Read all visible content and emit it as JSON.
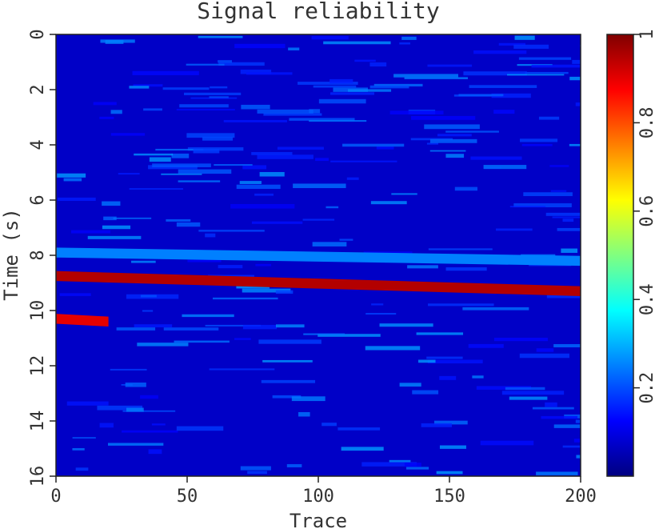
{
  "chart_data": {
    "type": "heatmap",
    "title": "Signal reliability",
    "xlabel": "Trace",
    "ylabel": "Time (s)",
    "xlim": [
      0,
      200
    ],
    "ylim": [
      0,
      16
    ],
    "y_inverted": true,
    "x_ticks": [
      "0",
      "50",
      "100",
      "150",
      "200"
    ],
    "x_tick_values": [
      0,
      50,
      100,
      150,
      200
    ],
    "y_ticks": [
      "0",
      "2",
      "4",
      "6",
      "8",
      "10",
      "12",
      "14",
      "16"
    ],
    "y_tick_values": [
      0,
      2,
      4,
      6,
      8,
      10,
      12,
      14,
      16
    ],
    "colorbar": {
      "range": [
        0,
        1
      ],
      "ticks": [
        "0.2",
        "0.4",
        "0.6",
        "0.8",
        "1"
      ],
      "tick_values": [
        0.2,
        0.4,
        0.6,
        0.8,
        1.0
      ],
      "colormap": "jet"
    },
    "background_value": 0.07,
    "features": [
      {
        "name": "strong reflector",
        "x": [
          0,
          200
        ],
        "y_start": 8.75,
        "y_end": 9.3,
        "value": 0.95
      },
      {
        "name": "moderate band",
        "x": [
          0,
          200
        ],
        "y_start": 7.9,
        "y_end": 8.2,
        "value": 0.25
      },
      {
        "name": "secondary event",
        "x": [
          0,
          20
        ],
        "y_start": 10.3,
        "y_end": 10.4,
        "value": 0.9
      }
    ]
  }
}
